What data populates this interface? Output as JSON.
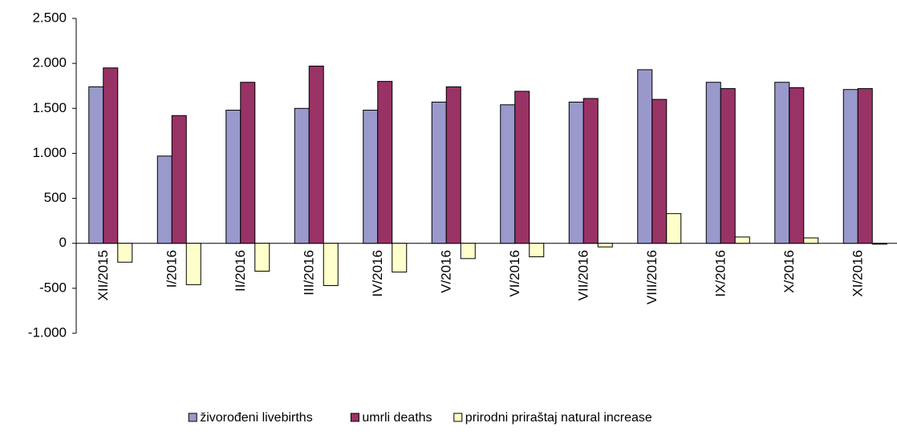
{
  "chart_data": {
    "type": "bar",
    "categories": [
      "XII/2015",
      "I/2016",
      "II/2016",
      "III/2016",
      "IV/2016",
      "V/2016",
      "VI/2016",
      "VII/2016",
      "VIII/2016",
      "IX/2016",
      "X/2016",
      "XI/2016"
    ],
    "series": [
      {
        "name": "živorođeni livebirths",
        "color": "#9999cc",
        "values": [
          1740,
          970,
          1480,
          1500,
          1480,
          1570,
          1540,
          1570,
          1930,
          1790,
          1790,
          1710
        ]
      },
      {
        "name": "umrli deaths",
        "color": "#993366",
        "values": [
          1950,
          1420,
          1790,
          1970,
          1800,
          1740,
          1690,
          1610,
          1600,
          1720,
          1730,
          1720
        ]
      },
      {
        "name": "prirodni priraštaj natural increase",
        "color": "#ffffcc",
        "values": [
          -210,
          -460,
          -310,
          -470,
          -320,
          -170,
          -150,
          -40,
          330,
          70,
          60,
          -10
        ]
      }
    ],
    "ylim": [
      -1000,
      2500
    ],
    "yticks": [
      {
        "value": 2500,
        "label": "2.500"
      },
      {
        "value": 2000,
        "label": "2.000"
      },
      {
        "value": 1500,
        "label": "1.500"
      },
      {
        "value": 1000,
        "label": "1.000"
      },
      500,
      0,
      -500,
      {
        "value": -1000,
        "label": "-1.000"
      }
    ],
    "legend": "bottom"
  }
}
